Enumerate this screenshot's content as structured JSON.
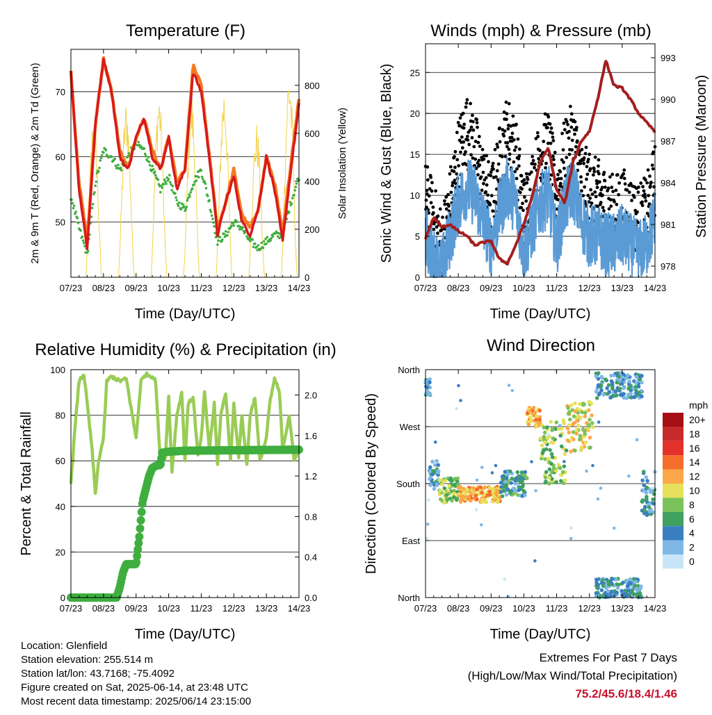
{
  "time_ticks": [
    "07/23",
    "08/23",
    "09/23",
    "10/23",
    "11/23",
    "12/23",
    "13/23",
    "14/23"
  ],
  "xlabel": "Time (Day/UTC)",
  "info": {
    "location": "Location: Glenfield",
    "elevation": "Station elevation: 255.514 m",
    "latlon": "Station lat/lon: 43.7168; -75.4092",
    "created": "Figure created on Sat, 2025-06-14, at 23:48 UTC",
    "recent": "Most recent data timestamp: 2025/06/14 23:15:00"
  },
  "extremes": {
    "title": "Extremes For Past 7 Days",
    "subtitle": "(High/Low/Max Wind/Total Precipitation)",
    "values": "75.2/45.6/18.4/1.46"
  },
  "chart_data": [
    {
      "type": "line",
      "title": "Temperature (F)",
      "ylabel": "2m & 9m T (Red, Orange) & 2m Td (Green)",
      "ylabel_right": "Solar Insolation (Yellow)",
      "xlabel": "Time (Day/UTC)",
      "x_days": [
        0,
        0.25,
        0.5,
        0.75,
        1,
        1.25,
        1.5,
        1.75,
        2,
        2.25,
        2.5,
        2.75,
        3,
        3.25,
        3.5,
        3.75,
        4,
        4.25,
        4.5,
        4.75,
        5,
        5.25,
        5.5,
        5.75,
        6,
        6.25,
        6.5,
        6.75,
        7
      ],
      "ylim": [
        41.5,
        76.5
      ],
      "yticks": [
        50,
        60,
        70
      ],
      "y2lim": [
        0,
        950
      ],
      "y2ticks": [
        0,
        200,
        400,
        600,
        800
      ],
      "colors": {
        "t2m": "#d7191c",
        "t9m": "#f47a20",
        "td": "#3fae3f",
        "solar": "#f2d24a"
      },
      "series": [
        {
          "key": "t2m",
          "values": [
            73,
            55,
            46,
            65,
            75,
            70,
            60,
            58,
            63,
            66,
            60,
            58,
            63,
            55,
            58,
            73,
            70,
            60,
            48,
            53,
            57,
            50,
            48,
            52,
            60,
            55,
            47,
            58,
            68
          ]
        },
        {
          "key": "t9m",
          "values": [
            73,
            56,
            47,
            65,
            75,
            70,
            61,
            58,
            63,
            66,
            61,
            58,
            63,
            56,
            58,
            74,
            71,
            60,
            49,
            53,
            58,
            51,
            49,
            52,
            60,
            56,
            48,
            59,
            69
          ]
        },
        {
          "key": "td",
          "values": [
            54,
            49,
            45,
            56,
            61,
            60,
            58,
            60,
            62,
            61,
            58,
            55,
            57,
            53,
            52,
            56,
            58,
            53,
            47,
            48,
            50,
            49,
            47,
            46,
            47,
            48,
            48,
            53,
            57
          ]
        }
      ],
      "solar": {
        "peaks": [
          700,
          750,
          800,
          780,
          820,
          650,
          900
        ],
        "peak_day_frac": 0.7
      }
    },
    {
      "type": "scatter",
      "title": "Winds (mph) & Pressure (mb)",
      "ylabel": "Sonic Wind & Gust (Blue, Black)",
      "ylabel_right": "Station Pressure (Maroon)",
      "xlabel": "Time (Day/UTC)",
      "ylim": [
        0,
        28.5
      ],
      "yticks": [
        0,
        5,
        10,
        15,
        20,
        25
      ],
      "y2lim": [
        977.2,
        994
      ],
      "y2ticks": [
        978,
        981,
        984,
        987,
        990,
        993
      ],
      "colors": {
        "wind": "#5b9bd5",
        "gust": "#000000",
        "pressure": "#a31f1f"
      },
      "wind_envelope": {
        "x": [
          0,
          0.25,
          0.5,
          0.75,
          1,
          1.25,
          1.5,
          1.75,
          2,
          2.25,
          2.5,
          2.75,
          3,
          3.25,
          3.5,
          3.75,
          4,
          4.25,
          4.5,
          4.75,
          5,
          5.25,
          5.5,
          5.75,
          6,
          6.25,
          6.5,
          6.75,
          7
        ],
        "mean": [
          5,
          2,
          1,
          5,
          9,
          11,
          10,
          7,
          4,
          8,
          11,
          9,
          3,
          6,
          9,
          10,
          4,
          9,
          11,
          7,
          5,
          5,
          4,
          4,
          5,
          4,
          3,
          4,
          7
        ]
      },
      "gust_envelope": {
        "mean": [
          10,
          7,
          4,
          9,
          15,
          18,
          16,
          12,
          9,
          14,
          18,
          15,
          8,
          11,
          15,
          16,
          10,
          15,
          17,
          12,
          11,
          10,
          9,
          8,
          9,
          8,
          7,
          8,
          12
        ]
      },
      "pressure": {
        "x": [
          0,
          0.25,
          0.5,
          0.75,
          1,
          1.25,
          1.5,
          1.75,
          2,
          2.25,
          2.5,
          2.75,
          3,
          3.25,
          3.5,
          3.75,
          4,
          4.25,
          4.5,
          4.75,
          5,
          5.25,
          5.5,
          5.75,
          6,
          6.25,
          6.5,
          6.75,
          7
        ],
        "values": [
          980,
          981.5,
          980.8,
          981,
          980.5,
          980.2,
          979.5,
          979.7,
          979.8,
          978.5,
          978.2,
          979.5,
          981,
          983,
          985.5,
          986.5,
          983.5,
          982.5,
          985.5,
          987,
          987.7,
          990,
          992.8,
          991,
          990.8,
          990,
          989,
          988.3,
          987.7
        ]
      }
    },
    {
      "type": "line",
      "title": "Relative Humidity (%) & Precipitation (in)",
      "ylabel": "Percent & Total Rainfall",
      "xlabel": "Time (Day/UTC)",
      "ylim": [
        0,
        100
      ],
      "yticks": [
        0,
        20,
        40,
        60,
        80,
        100
      ],
      "y2lim": [
        0,
        2.25
      ],
      "y2ticks": [
        0.0,
        0.4,
        0.8,
        1.2,
        1.6,
        2.0
      ],
      "colors": {
        "rh": "#99cc55",
        "precip": "#3fae3f"
      },
      "series": [
        {
          "key": "rh",
          "x": [
            0,
            0.1,
            0.25,
            0.4,
            0.5,
            0.65,
            0.75,
            0.85,
            1,
            1.1,
            1.25,
            1.5,
            1.7,
            2,
            2.15,
            2.3,
            2.5,
            2.6,
            2.75,
            2.9,
            3.0,
            3.1,
            3.25,
            3.4,
            3.5,
            3.6,
            3.75,
            3.9,
            4,
            4.1,
            4.25,
            4.4,
            4.5,
            4.6,
            4.75,
            4.9,
            5,
            5.15,
            5.25,
            5.4,
            5.5,
            5.65,
            5.8,
            6,
            6.1,
            6.25,
            6.4,
            6.5,
            6.7,
            6.85,
            7
          ],
          "values": [
            50,
            70,
            95,
            98,
            85,
            65,
            45,
            60,
            70,
            95,
            97,
            95,
            96,
            70,
            95,
            98,
            97,
            95,
            58,
            62,
            88,
            55,
            80,
            90,
            60,
            85,
            88,
            62,
            70,
            90,
            65,
            85,
            58,
            80,
            90,
            60,
            85,
            62,
            80,
            58,
            80,
            88,
            60,
            70,
            85,
            96,
            90,
            65,
            80,
            60,
            66
          ]
        },
        {
          "key": "precip",
          "x": [
            0,
            1.4,
            1.5,
            1.6,
            1.7,
            2.0,
            2.1,
            2.2,
            2.4,
            2.5,
            2.6,
            2.75,
            2.8,
            3.0,
            3.5,
            7
          ],
          "values": [
            0,
            0,
            0.1,
            0.25,
            0.33,
            0.33,
            0.6,
            0.95,
            1.2,
            1.28,
            1.3,
            1.31,
            1.43,
            1.44,
            1.45,
            1.46
          ]
        }
      ]
    },
    {
      "type": "scatter",
      "title": "Wind Direction",
      "ylabel": "Direction (Colored By Speed)",
      "xlabel": "Time (Day/UTC)",
      "ylim": [
        0,
        360
      ],
      "ytick_labels": [
        "North",
        "East",
        "South",
        "West",
        "North"
      ],
      "ytick_values": [
        0,
        90,
        180,
        270,
        360
      ],
      "colorbar": {
        "title": "mph",
        "labels": [
          "20+",
          "18",
          "16",
          "14",
          "12",
          "10",
          "8",
          "6",
          "4",
          "2",
          "0"
        ],
        "colors": [
          "#a50f15",
          "#c62a2a",
          "#e3322a",
          "#f46d2a",
          "#fca74a",
          "#e6e05a",
          "#7bc25a",
          "#3fa060",
          "#3a7fc0",
          "#7fb8e6",
          "#c8e6f8"
        ]
      },
      "clusters": [
        {
          "x": [
            0.0,
            0.15
          ],
          "dir": [
            320,
            345
          ],
          "speed": 4
        },
        {
          "x": [
            0.1,
            0.4
          ],
          "dir": [
            170,
            220
          ],
          "speed": 4
        },
        {
          "x": [
            0.4,
            1.0
          ],
          "dir": [
            150,
            190
          ],
          "speed": 8
        },
        {
          "x": [
            1.0,
            2.3
          ],
          "dir": [
            150,
            175
          ],
          "speed": 12
        },
        {
          "x": [
            2.3,
            3.1
          ],
          "dir": [
            160,
            200
          ],
          "speed": 5
        },
        {
          "x": [
            3.1,
            3.5
          ],
          "dir": [
            270,
            300
          ],
          "speed": 12
        },
        {
          "x": [
            3.5,
            4.3
          ],
          "dir": [
            180,
            280
          ],
          "speed": 8
        },
        {
          "x": [
            4.3,
            5.1
          ],
          "dir": [
            230,
            310
          ],
          "speed": 10
        },
        {
          "x": [
            5.2,
            6.6
          ],
          "dir": [
            315,
            355
          ],
          "speed": 4
        },
        {
          "x": [
            5.2,
            6.6
          ],
          "dir": [
            0,
            30
          ],
          "speed": 4
        },
        {
          "x": [
            6.6,
            7.0
          ],
          "dir": [
            130,
            200
          ],
          "speed": 4
        }
      ]
    }
  ]
}
